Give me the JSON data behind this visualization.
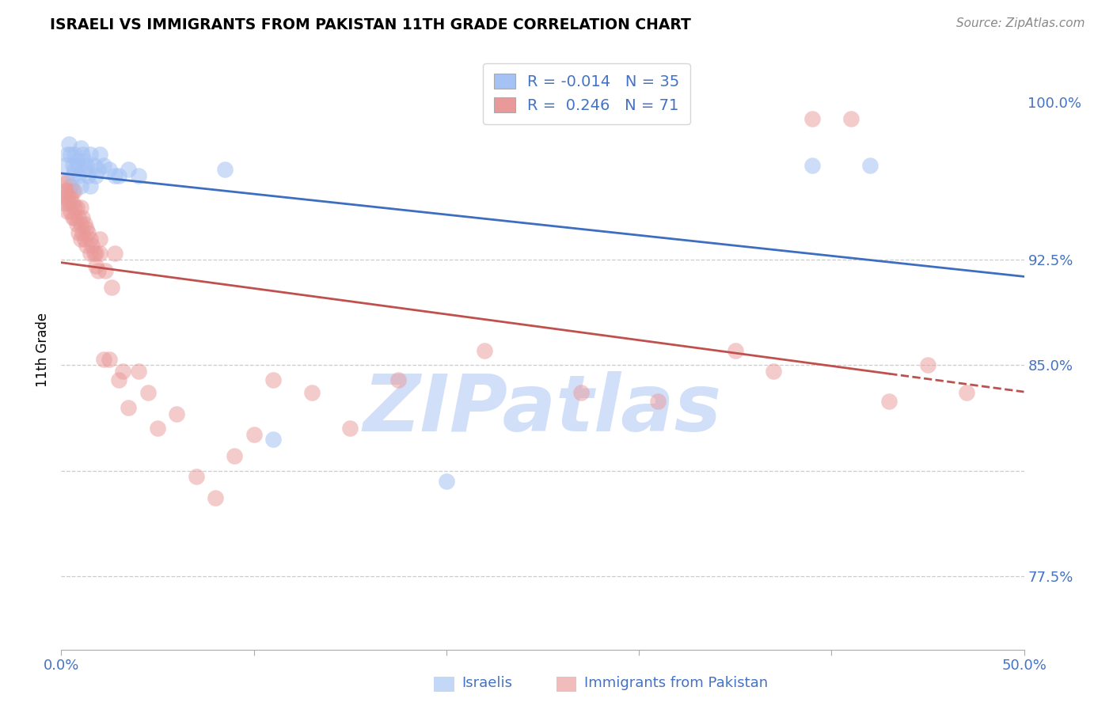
{
  "title": "ISRAELI VS IMMIGRANTS FROM PAKISTAN 11TH GRADE CORRELATION CHART",
  "source": "Source: ZipAtlas.com",
  "xlabel_label": "Israelis",
  "xlabel_label2": "Immigrants from Pakistan",
  "ylabel": "11th Grade",
  "xlim": [
    0.0,
    0.5
  ],
  "ylim": [
    0.74,
    1.025
  ],
  "R_blue": -0.014,
  "N_blue": 35,
  "R_pink": 0.246,
  "N_pink": 71,
  "blue_color": "#a4c2f4",
  "pink_color": "#ea9999",
  "blue_line_color": "#3d6ebf",
  "pink_line_color": "#c0504d",
  "watermark_color": "#c9daf8",
  "blue_points_x": [
    0.002,
    0.003,
    0.004,
    0.005,
    0.006,
    0.006,
    0.007,
    0.007,
    0.008,
    0.009,
    0.009,
    0.01,
    0.01,
    0.011,
    0.012,
    0.012,
    0.013,
    0.014,
    0.015,
    0.015,
    0.017,
    0.018,
    0.019,
    0.02,
    0.022,
    0.025,
    0.028,
    0.03,
    0.035,
    0.04,
    0.085,
    0.11,
    0.2,
    0.39,
    0.42
  ],
  "blue_points_y": [
    0.97,
    0.975,
    0.98,
    0.975,
    0.97,
    0.965,
    0.975,
    0.968,
    0.972,
    0.97,
    0.965,
    0.978,
    0.96,
    0.975,
    0.968,
    0.972,
    0.97,
    0.965,
    0.975,
    0.96,
    0.97,
    0.965,
    0.968,
    0.975,
    0.97,
    0.968,
    0.965,
    0.965,
    0.968,
    0.965,
    0.968,
    0.84,
    0.82,
    0.97,
    0.97
  ],
  "pink_points_x": [
    0.001,
    0.001,
    0.002,
    0.002,
    0.003,
    0.003,
    0.003,
    0.004,
    0.004,
    0.005,
    0.005,
    0.005,
    0.006,
    0.006,
    0.006,
    0.007,
    0.007,
    0.007,
    0.008,
    0.008,
    0.009,
    0.009,
    0.01,
    0.01,
    0.01,
    0.011,
    0.011,
    0.012,
    0.012,
    0.013,
    0.013,
    0.014,
    0.015,
    0.015,
    0.016,
    0.017,
    0.018,
    0.018,
    0.019,
    0.02,
    0.02,
    0.022,
    0.023,
    0.025,
    0.026,
    0.028,
    0.03,
    0.032,
    0.035,
    0.04,
    0.045,
    0.05,
    0.06,
    0.07,
    0.08,
    0.09,
    0.1,
    0.11,
    0.13,
    0.15,
    0.175,
    0.22,
    0.27,
    0.31,
    0.35,
    0.37,
    0.39,
    0.41,
    0.43,
    0.45,
    0.47
  ],
  "pink_points_y": [
    0.962,
    0.955,
    0.958,
    0.952,
    0.955,
    0.948,
    0.962,
    0.952,
    0.958,
    0.948,
    0.955,
    0.96,
    0.945,
    0.952,
    0.958,
    0.945,
    0.95,
    0.958,
    0.942,
    0.95,
    0.938,
    0.945,
    0.935,
    0.942,
    0.95,
    0.938,
    0.945,
    0.935,
    0.942,
    0.932,
    0.94,
    0.938,
    0.928,
    0.935,
    0.932,
    0.928,
    0.922,
    0.928,
    0.92,
    0.928,
    0.935,
    0.878,
    0.92,
    0.878,
    0.912,
    0.928,
    0.868,
    0.872,
    0.855,
    0.872,
    0.862,
    0.845,
    0.852,
    0.822,
    0.812,
    0.832,
    0.842,
    0.868,
    0.862,
    0.845,
    0.868,
    0.882,
    0.862,
    0.858,
    0.882,
    0.872,
    0.992,
    0.992,
    0.858,
    0.875,
    0.862
  ]
}
